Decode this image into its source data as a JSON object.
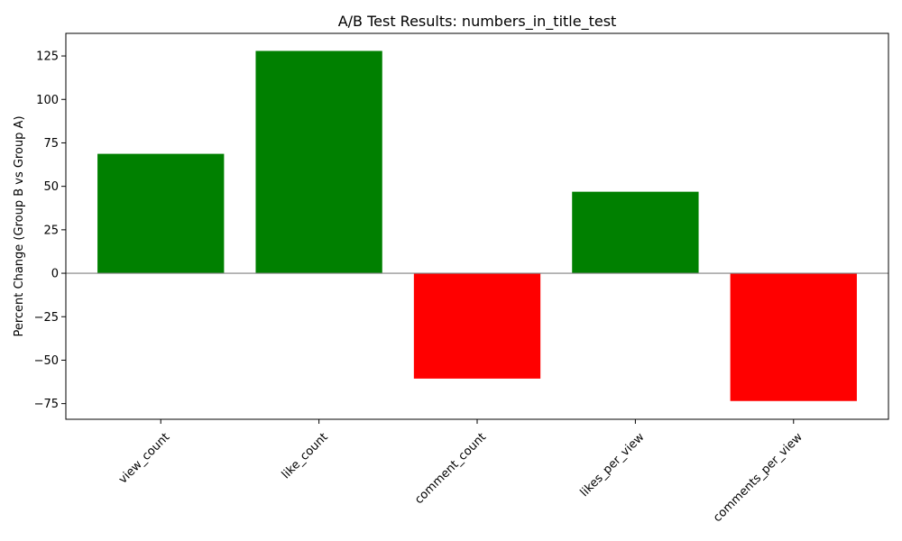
{
  "chart_data": {
    "type": "bar",
    "title": "A/B Test Results: numbers_in_title_test",
    "xlabel": "",
    "ylabel": "Percent Change (Group B vs Group A)",
    "categories": [
      "view_count",
      "like_count",
      "comment_count",
      "likes_per_view",
      "comments_per_view"
    ],
    "values": [
      68.7,
      127.9,
      -60.6,
      46.9,
      -73.5
    ],
    "yticks": [
      -75,
      -50,
      -25,
      0,
      25,
      50,
      75,
      100,
      125
    ],
    "ytick_labels": [
      "−75",
      "−50",
      "−25",
      "0",
      "25",
      "50",
      "75",
      "100",
      "125"
    ],
    "ylim": [
      -84,
      138
    ],
    "grid": false,
    "legend": "none",
    "colors": {
      "positive": "#008000",
      "negative": "#ff0000",
      "zero_line": "#808080"
    }
  }
}
